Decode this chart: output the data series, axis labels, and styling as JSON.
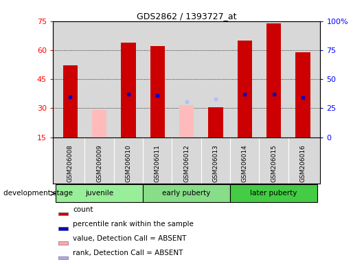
{
  "title": "GDS2862 / 1393727_at",
  "samples": [
    "GSM206008",
    "GSM206009",
    "GSM206010",
    "GSM206011",
    "GSM206012",
    "GSM206013",
    "GSM206014",
    "GSM206015",
    "GSM206016"
  ],
  "count_values": [
    52,
    0,
    64,
    62,
    0,
    30.5,
    65,
    74,
    59
  ],
  "count_absent": [
    0,
    29,
    0,
    0,
    31.5,
    0,
    0,
    0,
    0
  ],
  "percentile_present": [
    35,
    0,
    37,
    36,
    0,
    0,
    37,
    37,
    34
  ],
  "percentile_absent": [
    0,
    0,
    0,
    0,
    30.5,
    33,
    0,
    0,
    0
  ],
  "ylim_left": [
    15,
    75
  ],
  "ylim_right": [
    0,
    100
  ],
  "yticks_left": [
    15,
    30,
    45,
    60,
    75
  ],
  "yticks_right": [
    0,
    25,
    50,
    75,
    100
  ],
  "ytick_labels_right": [
    "0",
    "25",
    "50",
    "75",
    "100%"
  ],
  "groups": [
    {
      "label": "juvenile",
      "start": 0,
      "end": 3,
      "color": "#99ee99"
    },
    {
      "label": "early puberty",
      "start": 3,
      "end": 6,
      "color": "#88dd88"
    },
    {
      "label": "later puberty",
      "start": 6,
      "end": 9,
      "color": "#44cc44"
    }
  ],
  "legend_items": [
    {
      "label": "count",
      "color": "#cc0000"
    },
    {
      "label": "percentile rank within the sample",
      "color": "#0000cc"
    },
    {
      "label": "value, Detection Call = ABSENT",
      "color": "#ffaaaa"
    },
    {
      "label": "rank, Detection Call = ABSENT",
      "color": "#aaaaff"
    }
  ],
  "bar_width": 0.5,
  "count_color": "#cc0000",
  "percentile_color": "#0000cc",
  "absent_count_color": "#ffbbbb",
  "absent_rank_color": "#bbbbff",
  "bg_color": "#d8d8d8",
  "dev_stage_label": "development stage",
  "dotted_grid_values": [
    30,
    45,
    60
  ],
  "base": 15
}
